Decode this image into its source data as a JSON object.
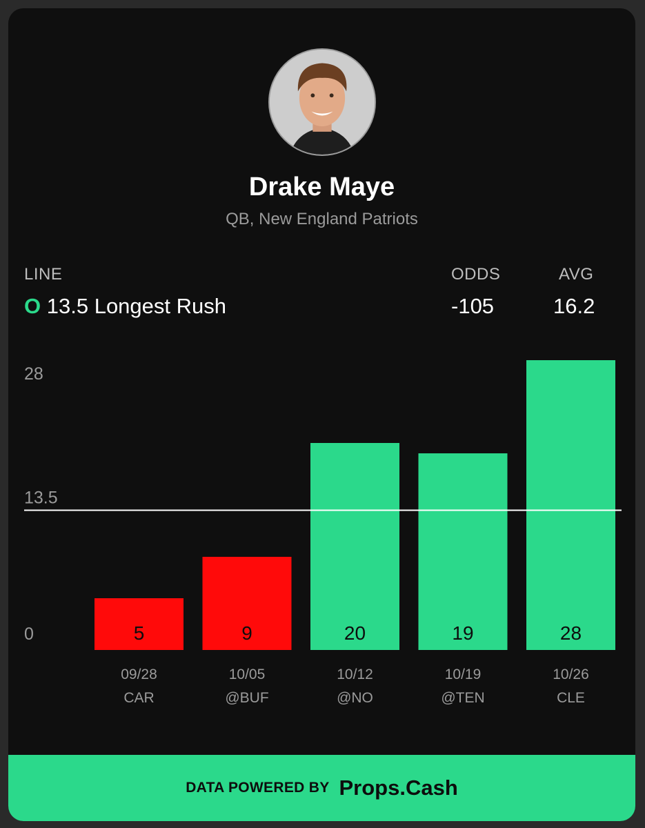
{
  "player": {
    "name": "Drake Maye",
    "subtitle": "QB, New England Patriots"
  },
  "prop": {
    "line_label": "LINE",
    "odds_label": "ODDS",
    "avg_label": "AVG",
    "over_under": "O",
    "line_text": "13.5 Longest Rush",
    "odds_value": "-105",
    "avg_value": "16.2"
  },
  "colors": {
    "hit": "#2bd98b",
    "miss": "#ff0a0a",
    "line": "#ffffff"
  },
  "chart_data": {
    "type": "bar",
    "categories": [
      "09/28",
      "10/05",
      "10/12",
      "10/19",
      "10/26"
    ],
    "opponents": [
      "CAR",
      "@BUF",
      "@NO",
      "@TEN",
      "CLE"
    ],
    "values": [
      5,
      9,
      20,
      19,
      28
    ],
    "line": 13.5,
    "ytick_labels": [
      "0",
      "13.5",
      "28"
    ],
    "ylim": [
      0,
      28
    ]
  },
  "footer": {
    "prefix": "DATA POWERED BY",
    "brand": "Props.Cash"
  }
}
